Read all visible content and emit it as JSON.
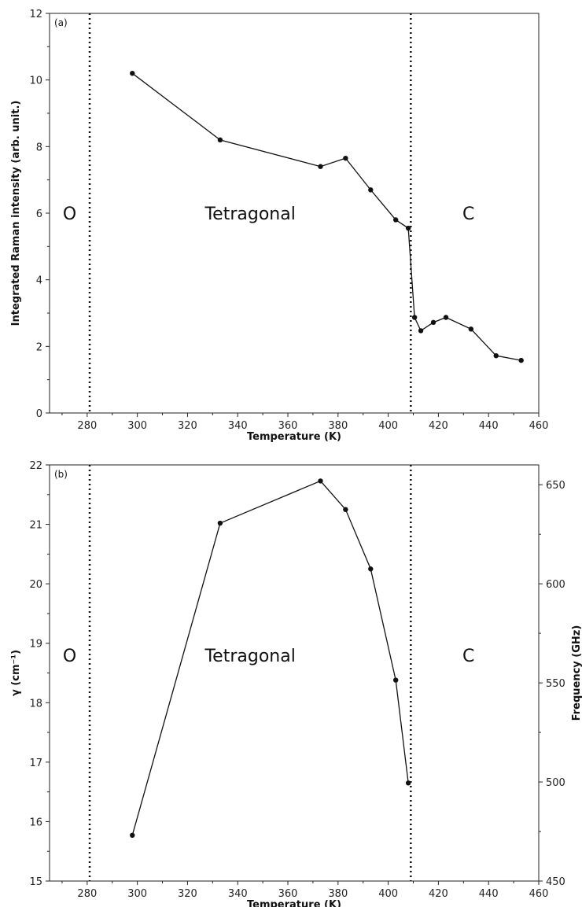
{
  "chart_data": [
    {
      "type": "line",
      "panel_label": "(a)",
      "xlabel": "Temperature (K)",
      "ylabel": "Integrated Raman intensity (arb. unit.)",
      "xlim": [
        265,
        460
      ],
      "ylim": [
        0,
        12
      ],
      "x_ticks": [
        280,
        300,
        320,
        340,
        360,
        380,
        400,
        420,
        440,
        460
      ],
      "y_ticks": [
        0,
        2,
        4,
        6,
        8,
        10,
        12
      ],
      "phase_boundaries": [
        281,
        409
      ],
      "phase_labels": [
        {
          "text": "O",
          "x": 273,
          "y": 6
        },
        {
          "text": "Tetragonal",
          "x": 345,
          "y": 6
        },
        {
          "text": "C",
          "x": 432,
          "y": 6
        }
      ],
      "series": [
        {
          "x": [
            298,
            333,
            373,
            383,
            393,
            403,
            408,
            410.5,
            413,
            418,
            423,
            433,
            443,
            453
          ],
          "y": [
            10.2,
            8.2,
            7.4,
            7.65,
            6.7,
            5.8,
            5.55,
            2.87,
            2.47,
            2.72,
            2.87,
            2.52,
            1.72,
            1.58
          ]
        }
      ],
      "grid": false
    },
    {
      "type": "line",
      "panel_label": "(b)",
      "xlabel": "Temperature (K)",
      "ylabel": "γ (cm⁻¹)",
      "ylabel_right": "Frequency (GHz)",
      "xlim": [
        265,
        460
      ],
      "ylim": [
        15,
        22
      ],
      "ylim_right": [
        450,
        660
      ],
      "x_ticks": [
        280,
        300,
        320,
        340,
        360,
        380,
        400,
        420,
        440,
        460
      ],
      "y_ticks": [
        15,
        16,
        17,
        18,
        19,
        20,
        21,
        22
      ],
      "y_ticks_right": [
        450,
        500,
        550,
        600,
        650
      ],
      "phase_boundaries": [
        281,
        409
      ],
      "phase_labels": [
        {
          "text": "O",
          "x": 273,
          "y": 18.8
        },
        {
          "text": "Tetragonal",
          "x": 345,
          "y": 18.8
        },
        {
          "text": "C",
          "x": 432,
          "y": 18.8
        }
      ],
      "series": [
        {
          "x": [
            298,
            333,
            373,
            383,
            393,
            403,
            408
          ],
          "y": [
            15.77,
            21.02,
            21.73,
            21.25,
            20.25,
            18.38,
            16.65
          ]
        }
      ],
      "grid": false
    }
  ]
}
